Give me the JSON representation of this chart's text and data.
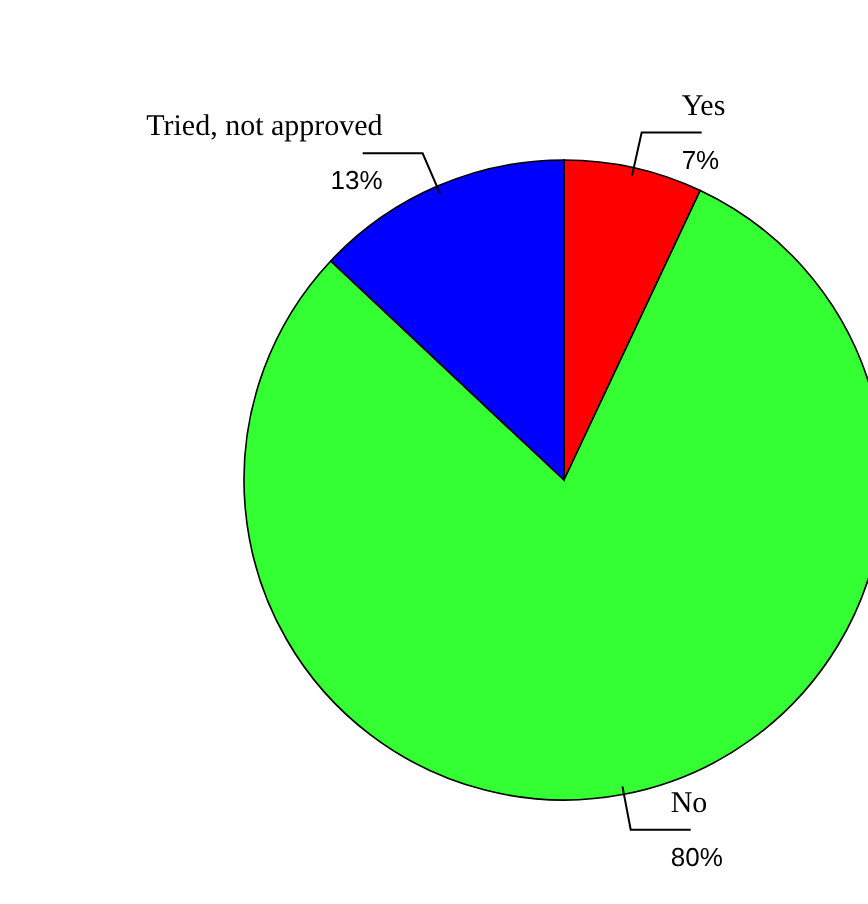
{
  "chart_data": {
    "type": "pie",
    "categories": [
      "Yes",
      "No",
      "Tried, not approved"
    ],
    "values": [
      7,
      80,
      13
    ],
    "colors": [
      "#ff0000",
      "#33ff33",
      "#0000ff"
    ],
    "value_labels": [
      "7%",
      "80%",
      "13%"
    ]
  }
}
